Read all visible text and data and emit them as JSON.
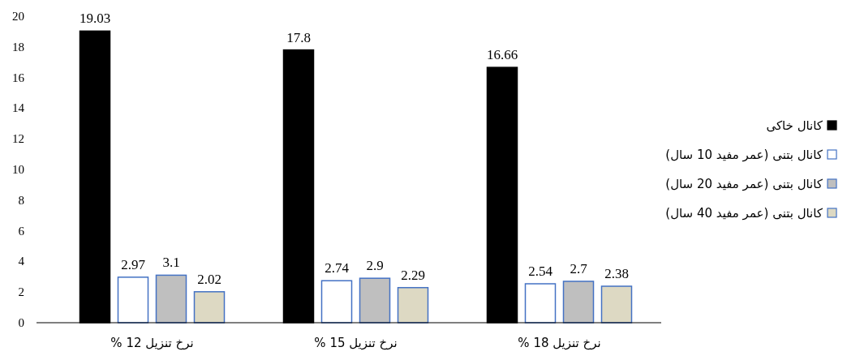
{
  "chart_data": {
    "type": "bar",
    "categories": [
      "نرخ تنزیل 12 %",
      "نرخ تنزیل 15 %",
      "نرخ تنزیل 18 %"
    ],
    "series": [
      {
        "name": "کانال خاکی",
        "color": "#000000",
        "values": [
          19.03,
          17.8,
          16.66
        ]
      },
      {
        "name": "کانال بتنی (عمر مفید 10 سال)",
        "color": "#ffffff",
        "values": [
          2.97,
          2.74,
          2.54
        ]
      },
      {
        "name": "کانال بتنی (عمر مفید 20 سال)",
        "color": "#bfbfbf",
        "values": [
          3.1,
          2.9,
          2.7
        ]
      },
      {
        "name": "کانال بتنی (عمر مفید 40 سال)",
        "color": "#ddd9c3",
        "values": [
          2.02,
          2.29,
          2.38
        ]
      }
    ],
    "ylim": [
      0,
      20
    ],
    "yticks": [
      0,
      2,
      4,
      6,
      8,
      10,
      12,
      14,
      16,
      18,
      20
    ],
    "data_labels": true,
    "legend": "right",
    "grid": false
  }
}
